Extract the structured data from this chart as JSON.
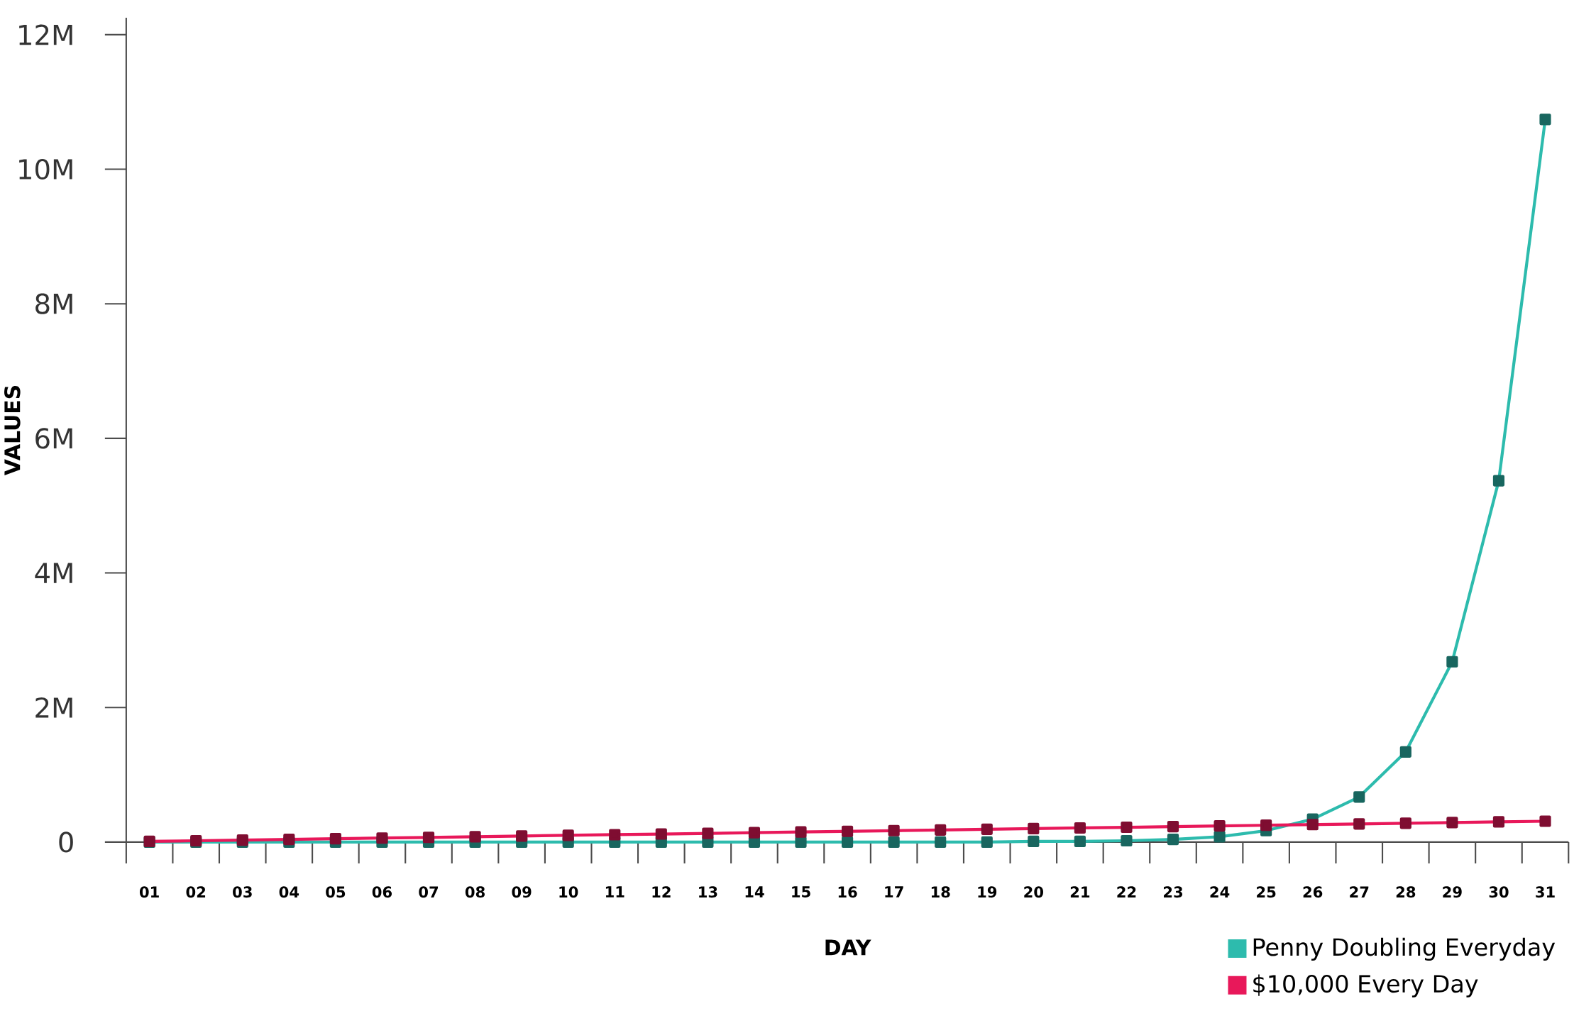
{
  "chart_data": {
    "type": "line",
    "xlabel": "DAY",
    "ylabel": "VALUES",
    "categories": [
      "01",
      "02",
      "03",
      "04",
      "05",
      "06",
      "07",
      "08",
      "09",
      "10",
      "11",
      "12",
      "13",
      "14",
      "15",
      "16",
      "17",
      "18",
      "19",
      "20",
      "21",
      "22",
      "23",
      "24",
      "25",
      "26",
      "27",
      "28",
      "29",
      "30",
      "31"
    ],
    "series": [
      {
        "name": "Penny Doubling Everyday",
        "color": "#2dbbad",
        "values": [
          0,
          0,
          0,
          0,
          0,
          0,
          0,
          0,
          0,
          0,
          0,
          0,
          0,
          0,
          0,
          0,
          0,
          0,
          0,
          10000,
          10000,
          20000,
          40000,
          80000,
          170000,
          340000,
          670000,
          1340000,
          2680000,
          5370000,
          10740000
        ]
      },
      {
        "name": "$10,000 Every Day",
        "color": "#e8185a",
        "values": [
          10000,
          20000,
          30000,
          40000,
          50000,
          60000,
          70000,
          80000,
          90000,
          100000,
          110000,
          120000,
          130000,
          140000,
          150000,
          160000,
          170000,
          180000,
          190000,
          200000,
          210000,
          220000,
          230000,
          240000,
          250000,
          260000,
          270000,
          280000,
          290000,
          300000,
          310000
        ]
      }
    ],
    "ylim": [
      0,
      12250000
    ],
    "yticks": [
      0,
      {
        "value": 2000000,
        "label": "2M"
      },
      {
        "value": 4000000,
        "label": "4M"
      },
      {
        "value": 6000000,
        "label": "6M"
      },
      {
        "value": 8000000,
        "label": "8M"
      },
      {
        "value": 10000000,
        "label": "10M"
      },
      {
        "value": 12000000,
        "label": "12M"
      }
    ],
    "legend": "bottom right",
    "marker": "square"
  }
}
